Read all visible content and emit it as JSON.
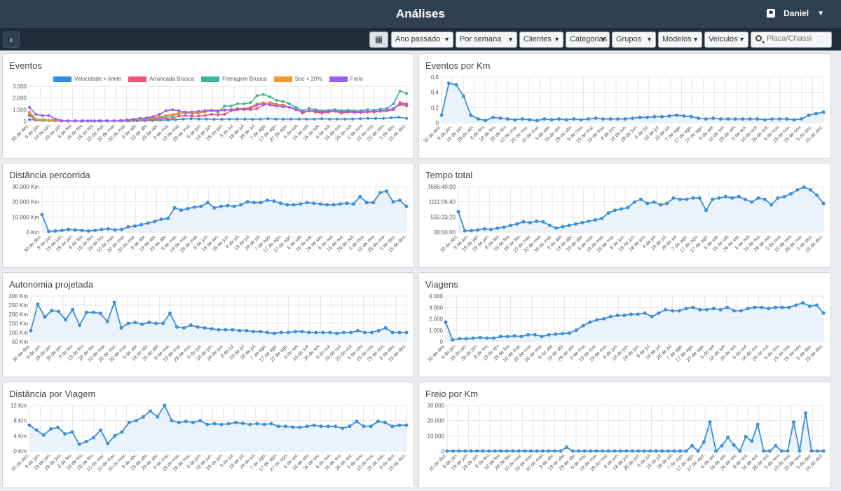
{
  "header": {
    "title": "Análises",
    "user_name": "Daniel"
  },
  "toolbar": {
    "period": "Ano passado",
    "grouping": "Por semana",
    "clients": "Clientes",
    "categories": "Categorias",
    "groups": "Grupos",
    "models": "Modelos",
    "vehicles": "Veículos",
    "search_placeholder": "Placa/Chassi"
  },
  "x_ticks": [
    "30 de dez.",
    "9 de jan.",
    "19 de jan.",
    "29 de jan.",
    "8 de fev.",
    "18 de fev.",
    "28 de fev.",
    "10 de mar.",
    "20 de mar.",
    "30 de mar.",
    "9 de abr.",
    "19 de abr.",
    "29 de abr.",
    "9 de mai.",
    "19 de mai.",
    "29 de mai.",
    "8 de jun.",
    "18 de jun.",
    "28 de jun.",
    "8 de jul.",
    "18 de jul.",
    "28 de jul.",
    "7 de ago.",
    "17 de ago.",
    "27 de ago.",
    "6 de set.",
    "16 de set.",
    "26 de set.",
    "6 de out.",
    "16 de out.",
    "26 de out.",
    "5 de nov.",
    "15 de nov.",
    "25 de nov.",
    "5 de dez.",
    "15 de dez."
  ],
  "colors": {
    "line": "#3d8fd9",
    "fill": "#eaf3fc",
    "grid": "#e6e6e6"
  },
  "chart_data": [
    {
      "id": "eventos",
      "type": "line",
      "title": "Eventos",
      "yticks": [
        "0",
        "1.000",
        "2.000",
        "3.000"
      ],
      "ylim": [
        0,
        3000
      ],
      "legend_position": "top",
      "series": [
        {
          "name": "Velocidade > limite",
          "color": "#2f8fe0",
          "values": [
            150,
            120,
            100,
            80,
            60,
            50,
            40,
            40,
            40,
            40,
            50,
            40,
            40,
            40,
            50,
            60,
            80,
            100,
            120,
            150,
            200,
            220,
            200,
            200,
            180,
            180,
            200,
            200,
            200,
            180,
            200,
            220,
            200,
            200,
            200,
            200,
            200,
            200,
            220,
            200,
            200,
            200,
            200,
            220,
            250,
            250,
            250,
            300,
            350,
            250
          ]
        },
        {
          "name": "Arrancada Brusca",
          "color": "#f0537a",
          "values": [
            500,
            100,
            80,
            60,
            30,
            30,
            20,
            20,
            20,
            20,
            20,
            20,
            20,
            30,
            30,
            40,
            60,
            100,
            120,
            150,
            200,
            250,
            300,
            450,
            500,
            450,
            450,
            500,
            600,
            550,
            600,
            900,
            1000,
            1000,
            1000,
            1100,
            1400,
            1600,
            1450,
            1400,
            1200,
            1100,
            700,
            900,
            800,
            700,
            800,
            850,
            700,
            800,
            750,
            750,
            800,
            800,
            850,
            900,
            1000,
            1600,
            1500
          ]
        },
        {
          "name": "Frenagem Brusca",
          "color": "#41b39a",
          "values": [
            700,
            150,
            100,
            80,
            40,
            40,
            30,
            30,
            30,
            30,
            30,
            30,
            30,
            40,
            40,
            60,
            100,
            150,
            200,
            250,
            300,
            400,
            500,
            650,
            750,
            650,
            700,
            800,
            900,
            800,
            1300,
            1300,
            1500,
            1500,
            1600,
            2200,
            2300,
            2100,
            1800,
            1700,
            1500,
            1200,
            900,
            1100,
            1000,
            900,
            950,
            1000,
            900,
            950,
            900,
            900,
            1000,
            950,
            1050,
            1100,
            1500,
            2600,
            2400
          ]
        },
        {
          "name": "Soc < 20%",
          "color": "#f5982c",
          "values": [
            800,
            200,
            150,
            100,
            60,
            40,
            30,
            30,
            30,
            30,
            30,
            30,
            30,
            40,
            60,
            100,
            150,
            200,
            250,
            300,
            400,
            500,
            600,
            700,
            800,
            700,
            750,
            800,
            900,
            850,
            1000,
            1000,
            1100,
            1100,
            1200,
            1500,
            1600,
            1500,
            1400,
            1300,
            1200,
            1000,
            800,
            900,
            900,
            800,
            850,
            850,
            800,
            850,
            800,
            800,
            850,
            850,
            900,
            950,
            1100,
            1400,
            1300
          ]
        },
        {
          "name": "Freio",
          "color": "#9b5ff0",
          "values": [
            1200,
            600,
            500,
            500,
            200,
            50,
            50,
            40,
            40,
            40,
            40,
            40,
            40,
            60,
            80,
            120,
            180,
            250,
            300,
            400,
            600,
            900,
            1000,
            900,
            800,
            800,
            850,
            900,
            950,
            900,
            950,
            1000,
            1050,
            1050,
            1100,
            1400,
            1500,
            1400,
            1300,
            1250,
            1200,
            1000,
            800,
            900,
            900,
            800,
            850,
            900,
            800,
            850,
            800,
            800,
            850,
            850,
            900,
            950,
            1100,
            1500,
            1400
          ]
        }
      ]
    },
    {
      "id": "eventos_km",
      "type": "line",
      "title": "Eventos por Km",
      "yticks": [
        "0",
        "0,2",
        "0,4",
        "0,6"
      ],
      "ylim": [
        0,
        0.6
      ],
      "series": [
        {
          "name": "",
          "values": [
            0.1,
            0.52,
            0.5,
            0.35,
            0.1,
            0.05,
            0.03,
            0.07,
            0.06,
            0.05,
            0.04,
            0.05,
            0.04,
            0.03,
            0.05,
            0.04,
            0.05,
            0.04,
            0.05,
            0.04,
            0.05,
            0.06,
            0.05,
            0.05,
            0.05,
            0.05,
            0.06,
            0.07,
            0.07,
            0.08,
            0.08,
            0.09,
            0.1,
            0.09,
            0.08,
            0.06,
            0.05,
            0.06,
            0.05,
            0.05,
            0.05,
            0.05,
            0.05,
            0.05,
            0.04,
            0.05,
            0.05,
            0.05,
            0.04,
            0.05,
            0.1,
            0.12,
            0.14
          ]
        }
      ]
    },
    {
      "id": "distancia",
      "type": "line",
      "title": "Distância percorrida",
      "yticks": [
        "0 Km",
        "10.000 Km",
        "20.000 Km",
        "30.000 Km"
      ],
      "ylim": [
        0,
        30000
      ],
      "series": [
        {
          "name": "",
          "values": [
            11500,
            500,
            800,
            1200,
            1800,
            1500,
            1200,
            800,
            1200,
            1800,
            2200,
            1500,
            1800,
            3500,
            4000,
            5000,
            6000,
            7000,
            8500,
            9000,
            16000,
            14500,
            15500,
            16500,
            17000,
            19500,
            16000,
            17000,
            17500,
            17000,
            18000,
            20000,
            19500,
            19500,
            21000,
            20500,
            19000,
            18000,
            18000,
            18500,
            19500,
            19000,
            18500,
            18000,
            18000,
            18500,
            19000,
            18500,
            23500,
            19500,
            19500,
            26000,
            27000,
            20000,
            21000,
            17000
          ]
        }
      ]
    },
    {
      "id": "tempo",
      "type": "line",
      "title": "Tempo total",
      "yticks": [
        "00:00:00",
        "555:33:20",
        "1111:06:40",
        "1666:40:00"
      ],
      "ylim": [
        0,
        1666.67
      ],
      "series": [
        {
          "name": "",
          "values": [
            750,
            50,
            60,
            80,
            120,
            100,
            150,
            180,
            250,
            300,
            380,
            350,
            400,
            380,
            250,
            150,
            200,
            250,
            300,
            350,
            400,
            450,
            500,
            700,
            800,
            850,
            900,
            1100,
            1200,
            1050,
            1100,
            1000,
            1050,
            1250,
            1200,
            1200,
            1250,
            1250,
            800,
            1200,
            1250,
            1300,
            1250,
            1300,
            1200,
            1100,
            1250,
            1200,
            1000,
            1250,
            1300,
            1400,
            1550,
            1650,
            1550,
            1350,
            1050
          ]
        }
      ]
    },
    {
      "id": "autonomia",
      "type": "line",
      "title": "Autonomia projetada",
      "yticks": [
        "50 Km",
        "100 Km",
        "150 Km",
        "200 Km",
        "250 Km",
        "300 Km"
      ],
      "ylim": [
        50,
        300
      ],
      "series": [
        {
          "name": "",
          "values": [
            110,
            255,
            185,
            220,
            215,
            170,
            225,
            140,
            210,
            210,
            205,
            160,
            265,
            125,
            150,
            155,
            145,
            155,
            150,
            150,
            205,
            130,
            125,
            140,
            130,
            125,
            120,
            115,
            115,
            115,
            110,
            110,
            105,
            105,
            100,
            95,
            100,
            100,
            105,
            105,
            100,
            100,
            100,
            100,
            95,
            100,
            100,
            110,
            100,
            100,
            110,
            125,
            100,
            100,
            100
          ]
        }
      ]
    },
    {
      "id": "viagens",
      "type": "line",
      "title": "Viagens",
      "yticks": [
        "0",
        "1.000",
        "2.000",
        "3.000",
        "4.000"
      ],
      "ylim": [
        0,
        4000
      ],
      "series": [
        {
          "name": "",
          "values": [
            1700,
            150,
            250,
            250,
            300,
            350,
            300,
            300,
            450,
            450,
            500,
            450,
            600,
            600,
            450,
            600,
            650,
            700,
            750,
            1000,
            1400,
            1700,
            1900,
            2000,
            2200,
            2300,
            2300,
            2400,
            2400,
            2500,
            2200,
            2500,
            2800,
            2700,
            2700,
            2900,
            3000,
            2800,
            2800,
            2900,
            2800,
            3000,
            2700,
            2700,
            2900,
            3000,
            3000,
            2900,
            3000,
            3000,
            3000,
            3200,
            3400,
            3100,
            3200,
            2500
          ]
        }
      ]
    },
    {
      "id": "dist_viagem",
      "type": "line",
      "title": "Distância por Viagem",
      "yticks": [
        "0 Km",
        "4 Km",
        "8 Km",
        "12 Km"
      ],
      "ylim": [
        0,
        12
      ],
      "series": [
        {
          "name": "",
          "values": [
            6.8,
            5.5,
            4.2,
            5.8,
            6.2,
            4.5,
            5.0,
            1.8,
            2.5,
            3.5,
            5.5,
            2.0,
            4.0,
            5.0,
            7.5,
            8.0,
            9.0,
            10.5,
            9.0,
            12.0,
            8.0,
            7.5,
            7.8,
            7.5,
            8.0,
            7.0,
            7.2,
            7.0,
            7.2,
            7.5,
            7.3,
            7.0,
            7.2,
            7.0,
            7.2,
            6.5,
            6.5,
            6.3,
            6.2,
            6.5,
            6.8,
            6.5,
            6.5,
            6.5,
            6.0,
            6.5,
            7.8,
            6.5,
            6.5,
            7.8,
            7.5,
            6.5,
            6.8,
            6.8
          ]
        }
      ]
    },
    {
      "id": "freio_km",
      "type": "line",
      "title": "Freio por Km",
      "yticks": [
        "0",
        "10.000",
        "20.000",
        "30.000"
      ],
      "ylim": [
        0,
        30000
      ],
      "series": [
        {
          "name": "",
          "values": [
            0,
            0,
            0,
            0,
            0,
            0,
            0,
            0,
            0,
            0,
            0,
            0,
            0,
            0,
            0,
            0,
            0,
            0,
            0,
            0,
            2500,
            0,
            0,
            0,
            0,
            0,
            0,
            0,
            0,
            0,
            0,
            0,
            0,
            0,
            0,
            0,
            0,
            0,
            0,
            0,
            0,
            3500,
            0,
            6000,
            19000,
            0,
            3500,
            9000,
            4000,
            0,
            9500,
            6500,
            17500,
            0,
            0,
            3500,
            0,
            0,
            19000,
            0,
            25000,
            0,
            0,
            0
          ]
        }
      ]
    }
  ]
}
